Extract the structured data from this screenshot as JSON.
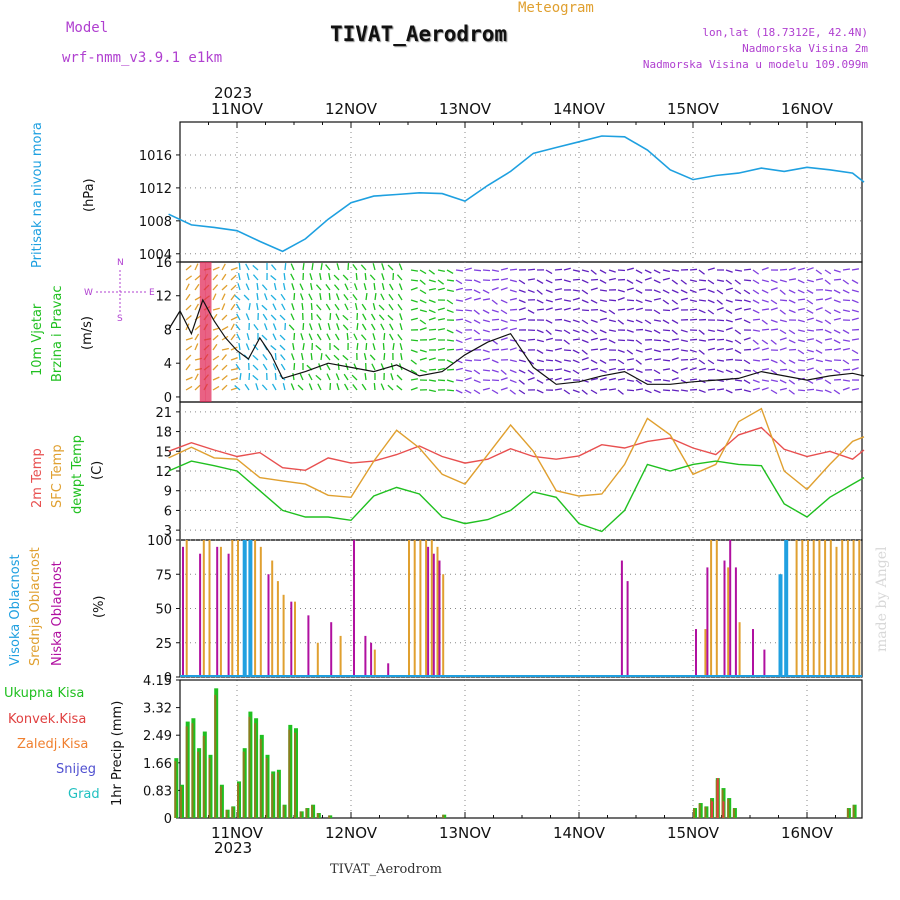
{
  "header": {
    "model_label": "Model",
    "model_name": "wrf-nmm_v3.9.1 e1km",
    "title": "TIVAT_Aerodrom",
    "meteogram": "Meteogram",
    "lonlat": "lon,lat (18.7312E, 42.4N)",
    "elevation": "Nadmorska Visina 2m",
    "model_elevation": "Nadmorska Visina u modelu 109.099m",
    "footer_station": "TIVAT_Aerodrom",
    "watermark": "made by Angel",
    "year_top": "2023",
    "year_bottom": "2023"
  },
  "colors": {
    "pressure": "#1ea0e0",
    "temp2m": "#e85050",
    "sfc": "#e0a030",
    "dewpt": "#20c020",
    "high_cloud": "#20a0e0",
    "mid_cloud": "#e0a030",
    "low_cloud": "#b010a0",
    "total_precip": "#20c020",
    "conv_precip": "#e04040",
    "frozen_precip": "#f08030",
    "snow": "#5050d0",
    "hail": "#20c0c0",
    "purple_text": "#b040d0",
    "orange_text": "#e0a030"
  },
  "labels": {
    "pressure": [
      "Pritisak na nivou mora",
      "(hPa)"
    ],
    "wind": [
      "10m Vjetar",
      "Brzina i Pravac",
      "(m/s)"
    ],
    "compass": [
      "N",
      "S",
      "E",
      "W"
    ],
    "temp": [
      "2m Temp",
      "SFC Temp",
      "dewpt Temp",
      "(C)"
    ],
    "cloud": [
      "Visoka Oblacnost",
      "Srednja Oblacnost",
      "Niska Oblacnost",
      "(%)"
    ],
    "precip_legend": [
      "Ukupna Kisa",
      "Konvek.Kisa",
      "Zaledj.Kisa",
      "Snijeg",
      "Grad"
    ],
    "precip_axis": "1hr Precip (mm)"
  },
  "chart_data": [
    {
      "type": "line",
      "panel": "pressure",
      "days": [
        "11NOV",
        "12NOV",
        "13NOV",
        "14NOV",
        "15NOV",
        "16NOV"
      ],
      "x": [
        -0.6,
        -0.4,
        -0.2,
        0.0,
        0.2,
        0.4,
        0.6,
        0.8,
        1.0,
        1.2,
        1.4,
        1.6,
        1.8,
        2.0,
        2.2,
        2.4,
        2.6,
        2.8,
        3.0,
        3.2,
        3.4,
        3.6,
        3.8,
        4.0,
        4.2,
        4.4,
        4.6,
        4.8,
        5.0,
        5.2,
        5.4,
        5.5
      ],
      "series": [
        {
          "values": [
            1008.8,
            1007.5,
            1007.2,
            1006.8,
            1005.5,
            1004.3,
            1005.8,
            1008.2,
            1010.2,
            1011.0,
            1011.2,
            1011.4,
            1011.3,
            1010.4,
            1012.3,
            1014.0,
            1016.2,
            1016.9,
            1017.6,
            1018.3,
            1018.2,
            1016.6,
            1014.2,
            1013.0,
            1013.5,
            1013.8,
            1014.4,
            1014.0,
            1014.5,
            1014.2,
            1013.8,
            1012.7
          ]
        }
      ],
      "ylim": [
        1003,
        1020
      ],
      "yticks": [
        1004,
        1008,
        1012,
        1016
      ]
    },
    {
      "type": "line",
      "panel": "wind",
      "x": [
        -0.6,
        -0.5,
        -0.4,
        -0.3,
        -0.2,
        -0.1,
        0.0,
        0.1,
        0.2,
        0.3,
        0.4,
        0.6,
        0.8,
        1.0,
        1.2,
        1.4,
        1.6,
        1.8,
        2.0,
        2.2,
        2.4,
        2.6,
        2.8,
        3.0,
        3.2,
        3.4,
        3.6,
        3.8,
        4.0,
        4.2,
        4.4,
        4.6,
        4.8,
        5.0,
        5.2,
        5.4,
        5.5
      ],
      "series": [
        {
          "name": "speed",
          "values": [
            8.0,
            10.2,
            7.5,
            11.5,
            9.0,
            7.0,
            5.5,
            4.5,
            7.0,
            5.0,
            2.2,
            3.0,
            4.0,
            3.5,
            3.0,
            3.8,
            2.5,
            3.0,
            5.0,
            6.5,
            7.5,
            3.5,
            1.5,
            1.8,
            2.5,
            3.0,
            1.5,
            1.5,
            1.8,
            2.0,
            2.2,
            3.0,
            2.5,
            2.0,
            2.5,
            2.8,
            2.5
          ]
        }
      ],
      "ylim": [
        -0.6,
        16
      ],
      "yticks": [
        0,
        4,
        8,
        12,
        16
      ]
    },
    {
      "type": "line",
      "panel": "temperature",
      "x": [
        -0.6,
        -0.4,
        -0.2,
        0.0,
        0.2,
        0.4,
        0.6,
        0.8,
        1.0,
        1.2,
        1.4,
        1.6,
        1.8,
        2.0,
        2.2,
        2.4,
        2.6,
        2.8,
        3.0,
        3.2,
        3.4,
        3.6,
        3.8,
        4.0,
        4.2,
        4.4,
        4.6,
        4.8,
        5.0,
        5.2,
        5.4,
        5.5
      ],
      "series": [
        {
          "name": "2m Temp",
          "values": [
            15.0,
            16.3,
            15.2,
            14.2,
            14.8,
            12.5,
            12.1,
            14.0,
            13.2,
            13.5,
            14.5,
            15.8,
            14.2,
            13.2,
            13.8,
            15.4,
            14.2,
            13.8,
            14.3,
            16.0,
            15.5,
            16.5,
            17.0,
            15.5,
            14.5,
            17.5,
            18.6,
            15.3,
            14.2,
            15.0,
            13.8,
            15.2
          ]
        },
        {
          "name": "SFC Temp",
          "values": [
            14.0,
            15.6,
            14.0,
            13.8,
            11.0,
            10.5,
            10.0,
            8.3,
            8.0,
            13.5,
            18.2,
            15.5,
            11.5,
            10.0,
            14.5,
            19.0,
            15.0,
            9.0,
            8.2,
            8.5,
            13.0,
            20.0,
            17.5,
            11.5,
            13.0,
            19.5,
            21.5,
            12.0,
            9.2,
            13.0,
            16.5,
            17.2
          ]
        },
        {
          "name": "dewpt Temp",
          "values": [
            12.0,
            13.5,
            12.8,
            12.0,
            9.0,
            6.0,
            5.0,
            5.0,
            4.5,
            8.2,
            9.5,
            8.5,
            5.0,
            4.0,
            4.6,
            6.0,
            8.8,
            8.0,
            4.0,
            2.8,
            6.0,
            13.0,
            12.0,
            13.0,
            13.5,
            13.0,
            12.8,
            7.0,
            5.0,
            8.0,
            10.0,
            11.0
          ]
        }
      ],
      "ylim": [
        1.5,
        22.5
      ],
      "yticks": [
        3,
        6,
        9,
        12,
        15,
        18,
        21
      ]
    },
    {
      "type": "bar",
      "panel": "cloud",
      "ylim": [
        0,
        100
      ],
      "yticks": [
        0,
        25,
        50,
        75,
        100
      ],
      "series": [
        {
          "name": "Visoka Oblacnost",
          "x": [
            0.05,
            0.1,
            4.75,
            4.8
          ],
          "values": [
            100,
            100,
            75,
            100
          ]
        },
        {
          "name": "Srednja Oblacnost",
          "x": [
            -0.45,
            -0.3,
            -0.25,
            -0.15,
            -0.05,
            0.0,
            0.15,
            0.2,
            0.3,
            0.35,
            0.4,
            0.5,
            0.7,
            0.9,
            1.2,
            1.5,
            1.55,
            1.6,
            1.65,
            1.7,
            1.75,
            1.8,
            4.1,
            4.15,
            4.2,
            4.3,
            4.4,
            4.9,
            4.95,
            5.0,
            5.05,
            5.1,
            5.15,
            5.2,
            5.25,
            5.3,
            5.35,
            5.4,
            5.45
          ],
          "values": [
            100,
            100,
            100,
            95,
            100,
            100,
            100,
            95,
            85,
            70,
            60,
            55,
            25,
            30,
            20,
            100,
            100,
            100,
            100,
            100,
            95,
            75,
            35,
            100,
            100,
            80,
            40,
            100,
            100,
            100,
            100,
            100,
            100,
            100,
            95,
            100,
            100,
            100,
            100
          ]
        },
        {
          "name": "Niska Oblacnost",
          "x": [
            -0.55,
            -0.5,
            -0.35,
            -0.2,
            -0.1,
            0.25,
            0.45,
            0.6,
            0.8,
            1.0,
            1.1,
            1.15,
            1.3,
            1.65,
            1.7,
            1.75,
            3.35,
            3.4,
            4.0,
            4.1,
            4.25,
            4.3,
            4.35,
            4.5,
            4.6
          ],
          "values": [
            95,
            95,
            90,
            95,
            90,
            75,
            55,
            45,
            40,
            100,
            30,
            25,
            10,
            95,
            90,
            85,
            85,
            70,
            35,
            80,
            85,
            100,
            80,
            35,
            20
          ]
        }
      ]
    },
    {
      "type": "bar",
      "panel": "precip",
      "ylim": [
        0,
        4.15
      ],
      "yticks": [
        0,
        0.83,
        1.66,
        2.49,
        3.32,
        4.15
      ],
      "series": [
        {
          "name": "Ukupna Kisa",
          "x": [
            -0.55,
            -0.5,
            -0.45,
            -0.4,
            -0.35,
            -0.3,
            -0.25,
            -0.2,
            -0.15,
            -0.1,
            -0.05,
            0.0,
            0.05,
            0.1,
            0.15,
            0.2,
            0.25,
            0.3,
            0.35,
            0.4,
            0.45,
            0.5,
            0.55,
            0.6,
            0.65,
            0.7,
            0.8,
            1.8,
            4.0,
            4.05,
            4.1,
            4.15,
            4.2,
            4.25,
            4.3,
            4.35,
            5.35,
            5.4
          ],
          "values": [
            1.8,
            1.0,
            2.9,
            3.0,
            2.1,
            2.6,
            1.9,
            3.9,
            1.0,
            0.25,
            0.35,
            1.1,
            2.1,
            3.2,
            3.0,
            2.5,
            1.9,
            1.4,
            1.45,
            0.4,
            2.8,
            2.7,
            0.2,
            0.3,
            0.4,
            0.15,
            0.08,
            0.1,
            0.3,
            0.45,
            0.35,
            0.6,
            1.2,
            0.9,
            0.6,
            0.3,
            0.3,
            0.4
          ]
        },
        {
          "name": "Konvek.Kisa",
          "x": [
            4.15,
            4.2,
            4.25
          ],
          "values": [
            0.5,
            1.2,
            0.5
          ]
        }
      ]
    }
  ]
}
